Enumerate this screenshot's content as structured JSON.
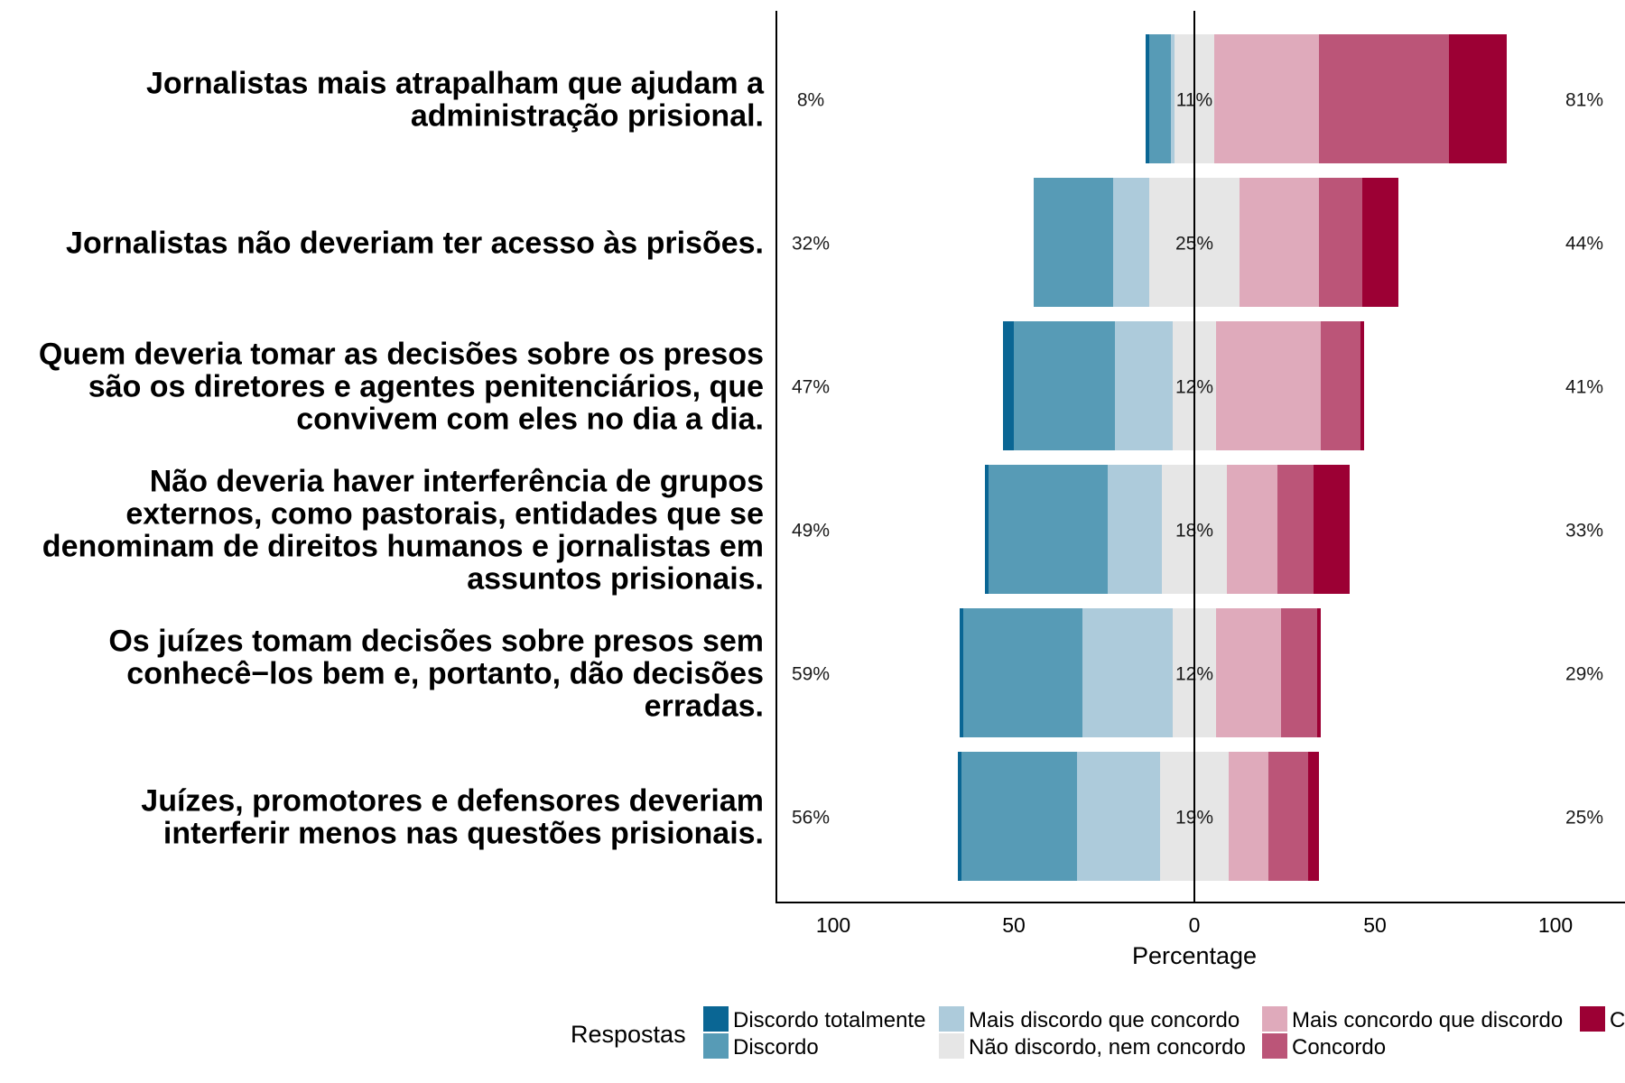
{
  "chart_data": {
    "type": "bar",
    "subtype": "diverging-stacked-likert",
    "xlabel": "Percentage",
    "xlim": [
      -100,
      100
    ],
    "x_ticks": [
      "100",
      "50",
      "0",
      "50",
      "100"
    ],
    "legend": {
      "title": "Respostas",
      "placement": "bottom"
    },
    "series": [
      {
        "name": "Discordo totalmente",
        "color": "#0a6694"
      },
      {
        "name": "Discordo",
        "color": "#579bb6"
      },
      {
        "name": "Mais discordo que concordo",
        "color": "#adcbdb"
      },
      {
        "name": "Não discordo, nem concordo",
        "color": "#e6e6e6"
      },
      {
        "name": "Mais concordo que discordo",
        "color": "#dfaabb"
      },
      {
        "name": "Concordo",
        "color": "#bb5578"
      },
      {
        "name": "Concordo totalmente",
        "color": "#9c0034"
      }
    ],
    "items": [
      {
        "label_lines": [
          "Jornalistas mais atrapalham que ajudam a",
          "administração prisional."
        ],
        "values": [
          1,
          6,
          1,
          11,
          29,
          36,
          16
        ],
        "left_pct": "8%",
        "center_pct": "11%",
        "right_pct": "81%"
      },
      {
        "label_lines": [
          "Jornalistas não deveriam ter acesso às prisões."
        ],
        "values": [
          0,
          22,
          10,
          25,
          22,
          12,
          10
        ],
        "left_pct": "32%",
        "center_pct": "25%",
        "right_pct": "44%"
      },
      {
        "label_lines": [
          "Quem deveria tomar as decisões sobre os presos",
          "são os diretores e agentes penitenciários, que",
          "convivem com eles no dia a dia."
        ],
        "values": [
          3,
          28,
          16,
          12,
          29,
          11,
          1
        ],
        "left_pct": "47%",
        "center_pct": "12%",
        "right_pct": "41%"
      },
      {
        "label_lines": [
          "Não deveria haver interferência de grupos",
          "externos, como pastorais, entidades que se",
          "denominam de direitos humanos e  jornalistas em",
          "assuntos prisionais."
        ],
        "values": [
          1,
          33,
          15,
          18,
          14,
          10,
          10
        ],
        "left_pct": "49%",
        "center_pct": "18%",
        "right_pct": "33%"
      },
      {
        "label_lines": [
          "Os juízes tomam decisões sobre presos sem",
          "conhecê−los bem e, portanto, dão decisões",
          "erradas."
        ],
        "values": [
          1,
          33,
          25,
          12,
          18,
          10,
          1
        ],
        "left_pct": "59%",
        "center_pct": "12%",
        "right_pct": "29%"
      },
      {
        "label_lines": [
          "Juízes, promotores e defensores deveriam",
          "interferir menos nas questões prisionais."
        ],
        "values": [
          1,
          32,
          23,
          19,
          11,
          11,
          3
        ],
        "left_pct": "56%",
        "center_pct": "19%",
        "right_pct": "25%"
      }
    ]
  }
}
